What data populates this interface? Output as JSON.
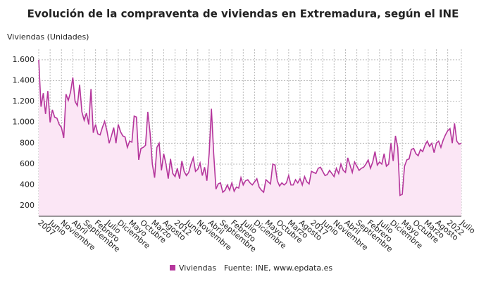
{
  "chart_data": {
    "type": "area",
    "title": "Evolución de la compraventa de viviendas en Extremadura, según el INE",
    "y_label": "Viviendas (Unidades)",
    "source": "Fuente: INE, www.epdata.es",
    "categories": [
      "2007",
      null,
      null,
      null,
      null,
      "Junio",
      null,
      null,
      null,
      null,
      "Noviembre",
      null,
      null,
      null,
      null,
      "Abril",
      null,
      null,
      null,
      null,
      "Septiembre",
      null,
      null,
      null,
      null,
      "Febrero",
      null,
      null,
      null,
      null,
      "Julio",
      null,
      null,
      null,
      null,
      "Diciembre",
      null,
      null,
      null,
      null,
      "Mayo",
      null,
      null,
      null,
      null,
      "Octubre",
      null,
      null,
      null,
      null,
      "Marzo",
      null,
      null,
      null,
      null,
      "Agosto",
      null,
      null,
      null,
      null,
      "2012",
      null,
      null,
      null,
      null,
      "Junio",
      null,
      null,
      null,
      null,
      "Noviembre",
      null,
      null,
      null,
      null,
      "Abril",
      null,
      null,
      null,
      null,
      "Septiembre",
      null,
      null,
      null,
      null,
      "Febrero",
      null,
      null,
      null,
      null,
      "Julio",
      null,
      null,
      null,
      null,
      "Diciembre",
      null,
      null,
      null,
      null,
      "Mayo",
      null,
      null,
      null,
      null,
      "Octubre",
      null,
      null,
      null,
      null,
      "Marzo",
      null,
      null,
      null,
      null,
      "Agosto",
      null,
      null,
      null,
      null,
      "2017",
      null,
      null,
      null,
      null,
      "Junio",
      null,
      null,
      null,
      null,
      "Noviembre",
      null,
      null,
      null,
      null,
      "Abril",
      null,
      null,
      null,
      null,
      "Septiembre",
      null,
      null,
      null,
      null,
      "Febrero",
      null,
      null,
      null,
      null,
      "Julio",
      null,
      null,
      null,
      null,
      "Diciembre",
      null,
      null,
      null,
      null,
      "Mayo",
      null,
      null,
      null,
      null,
      "Octubre",
      null,
      null,
      null,
      null,
      "Marzo",
      null,
      null,
      null,
      null,
      "Agosto",
      null,
      null,
      null,
      null,
      "2022",
      null,
      null,
      null,
      null,
      null,
      "Julio"
    ],
    "series": [
      {
        "name": "Viviendas",
        "color": "#b5369c",
        "fill": "#fbe6f5",
        "values": [
          1600,
          1150,
          1280,
          1080,
          1300,
          1000,
          1120,
          1050,
          1040,
          980,
          950,
          850,
          1270,
          1210,
          1290,
          1430,
          1200,
          1160,
          1360,
          1100,
          1020,
          1090,
          980,
          1320,
          900,
          980,
          890,
          880,
          950,
          1010,
          920,
          800,
          870,
          950,
          800,
          980,
          910,
          870,
          860,
          760,
          820,
          810,
          1060,
          1050,
          640,
          750,
          760,
          780,
          1100,
          900,
          600,
          470,
          760,
          800,
          540,
          700,
          600,
          460,
          650,
          510,
          480,
          560,
          460,
          630,
          530,
          490,
          520,
          600,
          660,
          530,
          550,
          610,
          490,
          570,
          440,
          700,
          1130,
          700,
          360,
          410,
          420,
          330,
          350,
          400,
          350,
          420,
          340,
          380,
          370,
          470,
          400,
          440,
          450,
          420,
          400,
          430,
          460,
          380,
          350,
          330,
          450,
          430,
          410,
          600,
          590,
          440,
          390,
          420,
          400,
          420,
          490,
          400,
          400,
          450,
          420,
          460,
          400,
          480,
          430,
          410,
          530,
          520,
          510,
          560,
          570,
          530,
          490,
          500,
          540,
          510,
          480,
          560,
          510,
          600,
          540,
          520,
          660,
          590,
          520,
          620,
          580,
          540,
          560,
          570,
          600,
          640,
          560,
          620,
          720,
          590,
          620,
          600,
          700,
          580,
          600,
          800,
          630,
          870,
          760,
          300,
          310,
          580,
          640,
          650,
          740,
          750,
          700,
          680,
          740,
          720,
          780,
          820,
          770,
          800,
          710,
          800,
          820,
          760,
          830,
          880,
          920,
          940,
          800,
          990,
          820,
          790,
          800
        ]
      }
    ],
    "ylim": [
      100,
      1700
    ],
    "yticks": [
      200,
      400,
      600,
      800,
      {
        "value": 1000,
        "label": "1.000"
      },
      {
        "value": 1200,
        "label": "1.200"
      },
      {
        "value": 1400,
        "label": "1.400"
      },
      {
        "value": 1600,
        "label": "1.600"
      }
    ],
    "grid": true
  }
}
